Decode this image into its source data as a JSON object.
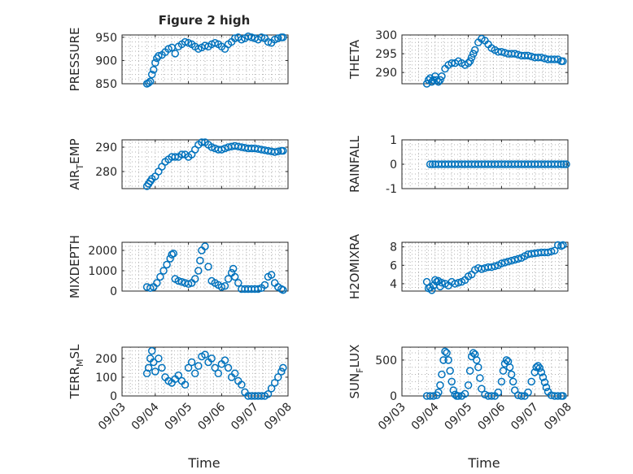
{
  "figure": {
    "title": "Figure 2 high",
    "xlabel": "Time"
  },
  "chart_data": [
    {
      "type": "scatter",
      "id": "pressure",
      "ylabel": "PRESSURE",
      "ylim": [
        850,
        955
      ],
      "yticks": [
        850,
        900,
        950
      ],
      "xlim": [
        0,
        5
      ],
      "xticklabels": [
        "09/03",
        "09/04",
        "09/05",
        "09/06",
        "09/07",
        "09/08"
      ],
      "grid": true,
      "x": [
        0.75,
        0.8,
        0.85,
        0.9,
        0.95,
        1.0,
        1.05,
        1.1,
        1.2,
        1.3,
        1.4,
        1.5,
        1.6,
        1.7,
        1.8,
        1.9,
        2.0,
        2.1,
        2.2,
        2.3,
        2.4,
        2.5,
        2.6,
        2.7,
        2.8,
        2.9,
        3.0,
        3.1,
        3.2,
        3.3,
        3.4,
        3.5,
        3.6,
        3.7,
        3.8,
        3.9,
        4.0,
        4.1,
        4.2,
        4.3,
        4.4,
        4.5,
        4.6,
        4.7,
        4.8,
        4.85
      ],
      "y": [
        850,
        852,
        855,
        870,
        880,
        895,
        905,
        910,
        912,
        918,
        925,
        928,
        915,
        930,
        935,
        940,
        938,
        935,
        930,
        925,
        928,
        932,
        930,
        935,
        938,
        935,
        930,
        925,
        935,
        940,
        948,
        950,
        945,
        948,
        952,
        950,
        948,
        945,
        950,
        948,
        940,
        938,
        945,
        948,
        950,
        950
      ]
    },
    {
      "type": "scatter",
      "id": "theta",
      "ylabel": "THETA",
      "ylim": [
        287,
        300
      ],
      "yticks": [
        290,
        295,
        300
      ],
      "xlim": [
        0,
        5
      ],
      "xticklabels": [
        "09/03",
        "09/04",
        "09/05",
        "09/06",
        "09/07",
        "09/08"
      ],
      "grid": true,
      "x": [
        0.75,
        0.8,
        0.85,
        0.9,
        0.95,
        1.0,
        1.05,
        1.1,
        1.15,
        1.2,
        1.3,
        1.4,
        1.5,
        1.6,
        1.7,
        1.8,
        1.9,
        2.0,
        2.05,
        2.1,
        2.15,
        2.2,
        2.3,
        2.4,
        2.5,
        2.6,
        2.7,
        2.8,
        2.9,
        3.0,
        3.2,
        3.4,
        3.6,
        3.8,
        4.0,
        4.2,
        4.4,
        4.6,
        4.7,
        4.8,
        4.85
      ],
      "y": [
        287,
        288,
        288.5,
        287.5,
        288,
        289,
        288,
        287.5,
        288,
        289,
        291,
        292,
        292.5,
        292.5,
        293,
        292.5,
        292,
        292.5,
        293,
        294,
        295,
        296,
        298,
        299,
        298.5,
        297.5,
        296.5,
        296,
        295.5,
        295.5,
        295,
        295,
        294.5,
        294.5,
        294,
        294,
        293.5,
        293.5,
        293.5,
        293,
        293
      ]
    },
    {
      "type": "scatter",
      "id": "air_temp",
      "ylabel": "AIR",
      "ylabel_sub": "T",
      "ylabel_suffix": "EMP",
      "ylim": [
        273,
        293
      ],
      "yticks": [
        280,
        290
      ],
      "xlim": [
        0,
        5
      ],
      "xticklabels": [
        "09/03",
        "09/04",
        "09/05",
        "09/06",
        "09/07",
        "09/08"
      ],
      "grid": true,
      "x": [
        0.75,
        0.8,
        0.85,
        0.9,
        1.0,
        1.1,
        1.2,
        1.3,
        1.4,
        1.5,
        1.6,
        1.7,
        1.8,
        1.9,
        2.0,
        2.1,
        2.2,
        2.3,
        2.4,
        2.5,
        2.6,
        2.7,
        2.8,
        2.9,
        3.0,
        3.1,
        3.2,
        3.4,
        3.6,
        3.8,
        4.0,
        4.2,
        4.4,
        4.6,
        4.8,
        4.85
      ],
      "y": [
        274,
        275,
        276,
        277,
        278,
        280,
        282,
        284,
        285,
        286,
        286,
        286,
        287,
        287,
        286,
        287,
        289,
        291,
        292,
        292,
        291,
        290,
        289.5,
        289,
        289,
        289.5,
        290,
        290.5,
        290,
        289.5,
        289.5,
        289,
        288.5,
        288,
        288.5,
        288.5
      ]
    },
    {
      "type": "scatter",
      "id": "rainfall",
      "ylabel": "RAINFALL",
      "ylim": [
        -1,
        1
      ],
      "yticks": [
        -1,
        0,
        1
      ],
      "xlim": [
        0,
        5
      ],
      "xticklabels": [
        "09/03",
        "09/04",
        "09/05",
        "09/06",
        "09/07",
        "09/08"
      ],
      "grid": true,
      "x": [
        0.85,
        1.0,
        1.2,
        1.4,
        1.6,
        1.8,
        2.0,
        2.2,
        2.4,
        2.6,
        2.8,
        3.0,
        3.2,
        3.4,
        3.6,
        3.8,
        4.0,
        4.2,
        4.4,
        4.6,
        4.8,
        4.95
      ],
      "y": [
        0,
        0,
        0,
        0,
        0,
        0,
        0,
        0,
        0,
        0,
        0,
        0,
        0,
        0,
        0,
        0,
        0,
        0,
        0,
        0,
        0,
        0
      ]
    },
    {
      "type": "scatter",
      "id": "mixdepth",
      "ylabel": "MIXDEPTH",
      "ylim": [
        0,
        2400
      ],
      "yticks": [
        0,
        1000,
        2000
      ],
      "xlim": [
        0,
        5
      ],
      "xticklabels": [
        "09/03",
        "09/04",
        "09/05",
        "09/06",
        "09/07",
        "09/08"
      ],
      "grid": true,
      "x": [
        0.75,
        0.85,
        0.95,
        1.05,
        1.15,
        1.25,
        1.35,
        1.45,
        1.5,
        1.55,
        1.6,
        1.7,
        1.8,
        1.9,
        2.0,
        2.1,
        2.2,
        2.3,
        2.35,
        2.4,
        2.5,
        2.6,
        2.7,
        2.8,
        2.9,
        3.0,
        3.1,
        3.2,
        3.3,
        3.35,
        3.4,
        3.5,
        3.6,
        3.7,
        3.8,
        3.9,
        4.0,
        4.1,
        4.2,
        4.3,
        4.4,
        4.5,
        4.6,
        4.7,
        4.8,
        4.85
      ],
      "y": [
        200,
        150,
        200,
        400,
        700,
        1000,
        1300,
        1600,
        1800,
        1850,
        600,
        500,
        450,
        400,
        350,
        400,
        600,
        1000,
        1500,
        2000,
        2200,
        1200,
        500,
        400,
        300,
        200,
        250,
        600,
        900,
        1100,
        700,
        400,
        100,
        100,
        100,
        100,
        100,
        100,
        150,
        300,
        700,
        800,
        400,
        200,
        100,
        50
      ]
    },
    {
      "type": "scatter",
      "id": "h2omixra",
      "ylabel": "H2OMIXRA",
      "ylim": [
        3.2,
        8.5
      ],
      "yticks": [
        4,
        6,
        8
      ],
      "xlim": [
        0,
        5
      ],
      "xticklabels": [
        "09/03",
        "09/04",
        "09/05",
        "09/06",
        "09/07",
        "09/08"
      ],
      "grid": true,
      "x": [
        0.75,
        0.8,
        0.85,
        0.9,
        0.95,
        1.0,
        1.05,
        1.1,
        1.15,
        1.2,
        1.3,
        1.4,
        1.5,
        1.6,
        1.7,
        1.8,
        1.9,
        2.0,
        2.1,
        2.2,
        2.3,
        2.4,
        2.5,
        2.6,
        2.7,
        2.8,
        2.9,
        3.0,
        3.2,
        3.4,
        3.6,
        3.8,
        4.0,
        4.2,
        4.4,
        4.6,
        4.7,
        4.8,
        4.85
      ],
      "y": [
        4.2,
        3.5,
        3.6,
        3.3,
        3.8,
        4.4,
        4.2,
        4.3,
        3.7,
        4.1,
        4.0,
        3.8,
        4.2,
        4.0,
        4.1,
        4.2,
        4.4,
        4.8,
        5.0,
        5.5,
        5.7,
        5.6,
        5.7,
        5.8,
        5.8,
        5.9,
        6.0,
        6.2,
        6.4,
        6.6,
        6.8,
        7.2,
        7.3,
        7.4,
        7.4,
        7.6,
        8.2,
        8.1,
        8.2
      ]
    },
    {
      "type": "scatter",
      "id": "terr_msl",
      "ylabel": "TERR",
      "ylabel_sub": "M",
      "ylabel_suffix": "SL",
      "ylim": [
        0,
        260
      ],
      "yticks": [
        0,
        100,
        200
      ],
      "xlim": [
        0,
        5
      ],
      "xticklabels": [
        "09/03",
        "09/04",
        "09/05",
        "09/06",
        "09/07",
        "09/08"
      ],
      "grid": true,
      "x": [
        0.75,
        0.8,
        0.85,
        0.9,
        0.95,
        1.0,
        1.1,
        1.2,
        1.3,
        1.4,
        1.5,
        1.6,
        1.7,
        1.8,
        1.9,
        2.0,
        2.1,
        2.2,
        2.3,
        2.4,
        2.5,
        2.6,
        2.7,
        2.8,
        2.9,
        3.0,
        3.1,
        3.2,
        3.3,
        3.4,
        3.5,
        3.6,
        3.7,
        3.8,
        3.9,
        4.0,
        4.1,
        4.2,
        4.3,
        4.4,
        4.5,
        4.6,
        4.7,
        4.8,
        4.85
      ],
      "y": [
        120,
        150,
        200,
        240,
        180,
        130,
        200,
        150,
        100,
        80,
        70,
        90,
        110,
        80,
        60,
        150,
        180,
        120,
        160,
        210,
        220,
        180,
        200,
        150,
        120,
        170,
        190,
        150,
        100,
        120,
        80,
        60,
        20,
        0,
        0,
        0,
        0,
        0,
        0,
        10,
        40,
        70,
        100,
        130,
        150
      ]
    },
    {
      "type": "scatter",
      "id": "sun_flux",
      "ylabel": "SUN",
      "ylabel_sub": "F",
      "ylabel_suffix": "LUX",
      "ylim": [
        0,
        680
      ],
      "yticks": [
        0,
        500
      ],
      "xlim": [
        0,
        5
      ],
      "xticklabels": [
        "09/03",
        "09/04",
        "09/05",
        "09/06",
        "09/07",
        "09/08"
      ],
      "grid": true,
      "x": [
        0.75,
        0.85,
        0.95,
        1.05,
        1.1,
        1.15,
        1.2,
        1.25,
        1.3,
        1.35,
        1.4,
        1.45,
        1.5,
        1.55,
        1.6,
        1.65,
        1.7,
        1.8,
        1.9,
        2.0,
        2.05,
        2.1,
        2.15,
        2.2,
        2.25,
        2.3,
        2.35,
        2.4,
        2.5,
        2.6,
        2.7,
        2.8,
        2.9,
        3.0,
        3.05,
        3.1,
        3.15,
        3.2,
        3.25,
        3.3,
        3.35,
        3.4,
        3.5,
        3.6,
        3.7,
        3.8,
        3.9,
        4.0,
        4.05,
        4.1,
        4.15,
        4.2,
        4.25,
        4.3,
        4.35,
        4.4,
        4.5,
        4.6,
        4.7,
        4.8,
        4.85
      ],
      "y": [
        0,
        0,
        0,
        10,
        50,
        150,
        300,
        500,
        620,
        600,
        500,
        350,
        200,
        80,
        20,
        0,
        0,
        0,
        30,
        150,
        350,
        550,
        600,
        580,
        500,
        400,
        250,
        100,
        20,
        0,
        0,
        0,
        50,
        200,
        350,
        450,
        500,
        480,
        400,
        300,
        200,
        80,
        10,
        0,
        0,
        50,
        200,
        330,
        400,
        420,
        390,
        330,
        260,
        190,
        120,
        60,
        10,
        0,
        0,
        0,
        0
      ]
    }
  ]
}
